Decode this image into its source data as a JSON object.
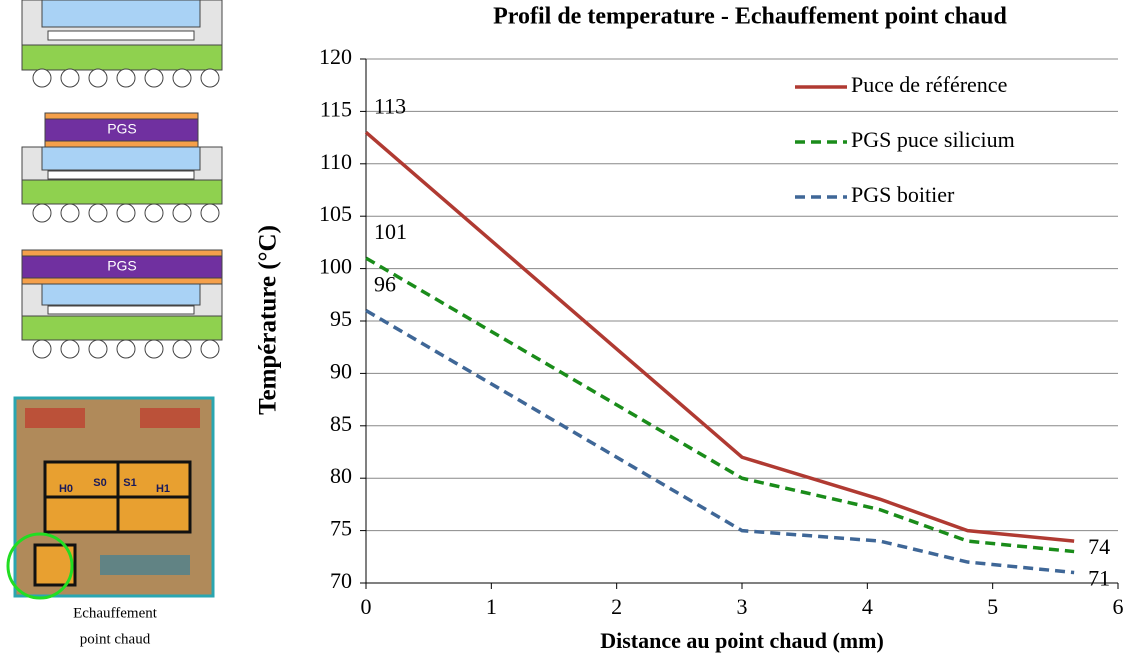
{
  "chart_data": {
    "type": "line",
    "title": "Profil de temperature - Echauffement point chaud",
    "x_label": "Distance au point chaud (mm)",
    "y_label": "Température (°C)",
    "x": [
      0,
      3,
      4.1,
      4.8,
      5.65
    ],
    "series": [
      {
        "name": "Puce de référence",
        "color": "#b03a32",
        "style": "solid",
        "values": [
          113,
          82,
          78,
          75,
          74
        ]
      },
      {
        "name": "PGS puce silicium",
        "color": "#1a8c1a",
        "style": "dashed",
        "values": [
          101,
          80,
          77,
          74,
          73
        ]
      },
      {
        "name": "PGS boitier",
        "color": "#3f6797",
        "style": "dashed",
        "values": [
          96,
          75,
          74,
          72,
          71
        ]
      }
    ],
    "data_labels": [
      "chart_data.series.0.values.0",
      "chart_data.series.1.values.0",
      "chart_data.series.2.values.0",
      "chart_data.series.0.values.4",
      "chart_data.series.2.values.4"
    ],
    "xlim": [
      0,
      6
    ],
    "xticks": [
      0,
      1,
      2,
      3,
      4,
      5,
      6
    ],
    "ylim": [
      70,
      120
    ],
    "yticks": [
      70,
      75,
      80,
      85,
      90,
      95,
      100,
      105,
      110,
      115,
      120
    ],
    "grid": true,
    "legend": "upper right"
  },
  "illustrations": {
    "pgs_label": "PGS",
    "die_labels": [
      "H0",
      "S0",
      "S1",
      "H1"
    ],
    "caption": [
      "Echauffement",
      "point chaud"
    ]
  }
}
